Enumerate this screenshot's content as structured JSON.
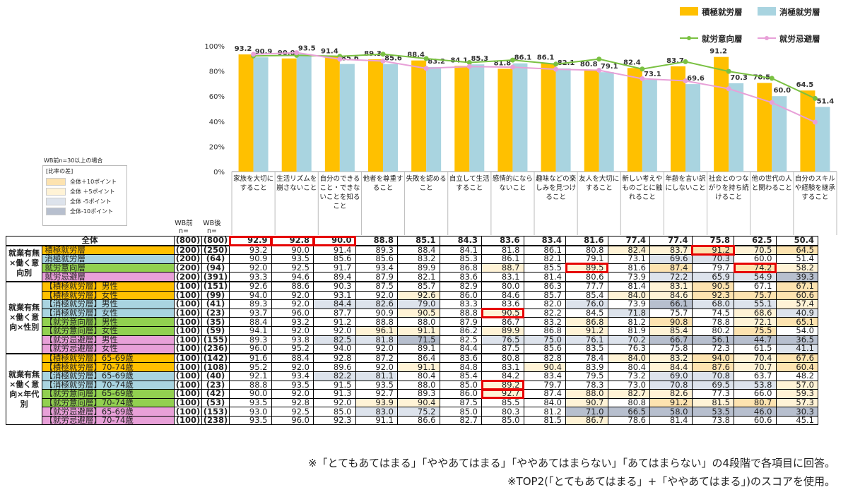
{
  "chart_data": {
    "type": "bar",
    "categories": [
      "家族を大切にすること",
      "生活リズムを崩さないこと",
      "自分のできること・できないことを知ること",
      "他者を尊重すること",
      "失敗を認めること",
      "自立して生活すること",
      "感情的にならないこと",
      "趣味などの楽しみを見つけること",
      "友人を大切にすること",
      "新しい考えやものごとに触れること",
      "年齢を言い訳にしないこと",
      "社会とのつながりを持ち続けること",
      "他の世代の人と関わること",
      "自分のスキルや経験を継承すること"
    ],
    "series": [
      {
        "name": "積極就労層",
        "kind": "bar",
        "color": "#ffc000",
        "values": [
          93.2,
          90.0,
          91.4,
          89.3,
          88.4,
          84.1,
          81.8,
          86.1,
          80.8,
          82.4,
          83.7,
          91.2,
          70.5,
          64.5
        ]
      },
      {
        "name": "消極就労層",
        "kind": "bar",
        "color": "#a9d4e0",
        "values": [
          90.9,
          93.5,
          85.6,
          85.6,
          83.2,
          85.3,
          86.1,
          82.1,
          79.1,
          73.1,
          69.6,
          70.3,
          60.0,
          51.4
        ]
      },
      {
        "name": "就労意向層",
        "kind": "line",
        "color": "#7ac142",
        "values": [
          92.0,
          92.5,
          91.7,
          93.4,
          89.9,
          86.8,
          88.7,
          85.5,
          89.5,
          81.6,
          87.4,
          79.7,
          74.2,
          58.2
        ]
      },
      {
        "name": "就労忌避層",
        "kind": "line",
        "color": "#e8a0d8",
        "values": [
          93.3,
          94.6,
          89.4,
          87.9,
          82.1,
          83.6,
          83.1,
          81.4,
          80.6,
          73.9,
          72.2,
          65.9,
          54.9,
          39.3
        ]
      }
    ],
    "y_ticks": [
      "0%",
      "20%",
      "40%",
      "60%",
      "80%",
      "100%"
    ],
    "ylim": [
      0,
      100
    ]
  },
  "legend_diff": {
    "wb_note": "WB前n=30以上の場合",
    "title": "[比率の差]",
    "items": [
      {
        "label": "全体＋10ポイント",
        "color": "#fde3b0"
      },
      {
        "label": "全体 ＋5ポイント",
        "color": "#fff3d6"
      },
      {
        "label": "全体 -5ポイント",
        "color": "#dde3ec"
      },
      {
        "label": "全体-10ポイント",
        "color": "#b7bfce"
      }
    ]
  },
  "table": {
    "n_head_before": "WB前\nn=",
    "n_head_after": "WB後\nn=",
    "groups": [
      {
        "label": "就業有無×働く意向別",
        "rows": [
          1,
          4
        ]
      },
      {
        "label": "就業有無×働く意向×性別",
        "rows": [
          5,
          12
        ]
      },
      {
        "label": "就業有無×働く意向×年代別",
        "rows": [
          13,
          20
        ]
      }
    ],
    "rows": [
      {
        "label": "全体",
        "color": "#ffffff",
        "nb": "(800)",
        "na": "(800)",
        "vals": [
          92.9,
          92.8,
          90.0,
          88.8,
          85.1,
          84.3,
          83.6,
          83.4,
          81.6,
          77.4,
          77.4,
          75.8,
          62.5,
          50.4
        ],
        "shade": [
          "",
          "",
          "",
          "",
          "",
          "",
          "",
          "",
          "",
          "",
          "",
          "",
          "",
          ""
        ],
        "hl": [
          0,
          1,
          2
        ]
      },
      {
        "label": "積極就労層",
        "color": "#ffc000",
        "nb": "(200)",
        "na": "(250)",
        "vals": [
          93.2,
          90.0,
          91.4,
          89.3,
          88.4,
          84.1,
          81.8,
          86.1,
          80.8,
          82.4,
          83.7,
          91.2,
          70.5,
          64.5
        ],
        "shade": [
          "",
          "",
          "",
          "",
          "",
          "",
          "",
          "",
          "",
          "+5",
          "+5",
          "+10",
          "+5",
          "+10"
        ],
        "hl": [
          11
        ]
      },
      {
        "label": "消極就労層",
        "color": "#a9d4e0",
        "nb": "(200)",
        "na": "(64)",
        "vals": [
          90.9,
          93.5,
          85.6,
          85.6,
          83.2,
          85.3,
          86.1,
          82.1,
          79.1,
          73.1,
          69.6,
          70.3,
          60.0,
          51.4
        ],
        "shade": [
          "",
          "",
          "",
          "",
          "",
          "",
          "",
          "",
          "",
          "",
          "-5",
          "-5",
          "",
          ""
        ],
        "hl": []
      },
      {
        "label": "就労意向層",
        "color": "#92d050",
        "nb": "(200)",
        "na": "(94)",
        "vals": [
          92.0,
          92.5,
          91.7,
          93.4,
          89.9,
          86.8,
          88.7,
          85.5,
          89.5,
          81.6,
          87.4,
          79.7,
          74.2,
          58.2
        ],
        "shade": [
          "",
          "",
          "",
          "",
          "",
          "",
          "+5",
          "",
          "+5",
          "",
          "+10",
          "",
          "+10",
          "+5"
        ],
        "hl": [
          8,
          12
        ]
      },
      {
        "label": "就労忌避層",
        "color": "#e8a0d8",
        "nb": "(200)",
        "na": "(391)",
        "vals": [
          93.3,
          94.6,
          89.4,
          87.9,
          82.1,
          83.6,
          83.1,
          81.4,
          80.6,
          73.9,
          72.2,
          65.9,
          54.9,
          39.3
        ],
        "shade": [
          "",
          "",
          "",
          "",
          "",
          "",
          "",
          "",
          "",
          "",
          "-5",
          "-5",
          "-5",
          "-10"
        ],
        "hl": []
      },
      {
        "label": "【積極就労層】男性",
        "color": "#ffc000",
        "nb": "(100)",
        "na": "(151)",
        "vals": [
          92.6,
          88.6,
          90.3,
          87.5,
          85.7,
          82.9,
          80.0,
          86.3,
          77.7,
          81.4,
          83.1,
          90.5,
          67.1,
          67.1
        ],
        "shade": [
          "",
          "",
          "",
          "",
          "",
          "",
          "",
          "",
          "",
          "",
          "+5",
          "+10",
          "",
          "+10"
        ],
        "hl": []
      },
      {
        "label": "【積極就労層】女性",
        "color": "#ffc000",
        "nb": "(100)",
        "na": "(99)",
        "vals": [
          94.0,
          92.0,
          93.1,
          92.0,
          92.6,
          86.0,
          84.6,
          85.7,
          85.4,
          84.0,
          84.6,
          92.3,
          75.7,
          60.6
        ],
        "shade": [
          "",
          "",
          "",
          "",
          "+5",
          "",
          "",
          "",
          "",
          "+5",
          "+5",
          "+10",
          "+10",
          "+10"
        ],
        "hl": []
      },
      {
        "label": "【消極就労層】男性",
        "color": "#a9d4e0",
        "nb": "(100)",
        "na": "(41)",
        "vals": [
          89.3,
          92.0,
          84.4,
          82.6,
          79.0,
          83.3,
          83.6,
          82.0,
          76.0,
          73.9,
          66.1,
          68.0,
          55.1,
          57.4
        ],
        "shade": [
          "",
          "",
          "-5",
          "-5",
          "-5",
          "",
          "",
          "",
          "-5",
          "",
          "-10",
          "-5",
          "-5",
          "+5"
        ],
        "hl": []
      },
      {
        "label": "【消極就労層】女性",
        "color": "#a9d4e0",
        "nb": "(100)",
        "na": "(23)",
        "vals": [
          93.7,
          96.0,
          87.7,
          90.9,
          90.5,
          88.8,
          90.5,
          82.2,
          84.5,
          71.8,
          75.7,
          74.5,
          68.6,
          40.9
        ],
        "shade": [
          "",
          "",
          "",
          "",
          "+5",
          "",
          "+5",
          "",
          "",
          "-5",
          "",
          "",
          "+5",
          "-5"
        ],
        "hl": [
          6
        ]
      },
      {
        "label": "【就労意向層】男性",
        "color": "#92d050",
        "nb": "(100)",
        "na": "(35)",
        "vals": [
          88.4,
          93.2,
          91.2,
          88.8,
          88.0,
          87.9,
          86.7,
          83.2,
          86.8,
          81.2,
          90.8,
          78.8,
          72.1,
          65.1
        ],
        "shade": [
          "",
          "",
          "",
          "",
          "",
          "",
          "",
          "",
          "+5",
          "",
          "+10",
          "",
          "+5",
          "+10"
        ],
        "hl": []
      },
      {
        "label": "【就労意向層】女性",
        "color": "#92d050",
        "nb": "(100)",
        "na": "(59)",
        "vals": [
          94.1,
          92.0,
          92.0,
          96.1,
          91.1,
          86.2,
          89.9,
          86.8,
          91.2,
          81.9,
          85.4,
          80.2,
          75.5,
          54.0
        ],
        "shade": [
          "",
          "",
          "",
          "+5",
          "+5",
          "",
          "+5",
          "",
          "+5",
          "",
          "+5",
          "",
          "+10",
          ""
        ],
        "hl": []
      },
      {
        "label": "【就労忌避層】男性",
        "color": "#e8a0d8",
        "nb": "(100)",
        "na": "(155)",
        "vals": [
          89.3,
          93.8,
          82.5,
          81.8,
          71.5,
          82.5,
          76.5,
          75.0,
          76.1,
          70.2,
          66.7,
          56.1,
          44.7,
          36.5
        ],
        "shade": [
          "",
          "",
          "-5",
          "-5",
          "-10",
          "",
          "-5",
          "-5",
          "-5",
          "-5",
          "-10",
          "-10",
          "-10",
          "-10"
        ],
        "hl": []
      },
      {
        "label": "【就労忌避層】女性",
        "color": "#e8a0d8",
        "nb": "(100)",
        "na": "(236)",
        "vals": [
          96.0,
          95.2,
          94.0,
          92.0,
          89.1,
          84.4,
          87.5,
          85.6,
          83.5,
          76.3,
          75.8,
          72.3,
          61.5,
          41.1
        ],
        "shade": [
          "",
          "",
          "",
          "",
          "",
          "",
          "",
          "",
          "",
          "",
          "",
          "",
          "",
          "-5"
        ],
        "hl": []
      },
      {
        "label": "【積極就労層】65-69歳",
        "color": "#ffc000",
        "nb": "(100)",
        "na": "(142)",
        "vals": [
          91.6,
          88.4,
          92.8,
          87.2,
          86.4,
          83.6,
          80.8,
          82.8,
          78.4,
          84.0,
          83.2,
          94.0,
          70.4,
          67.6
        ],
        "shade": [
          "",
          "",
          "",
          "",
          "",
          "",
          "",
          "",
          "",
          "+5",
          "+5",
          "+10",
          "+5",
          "+10"
        ],
        "hl": []
      },
      {
        "label": "【積極就労層】70-74歳",
        "color": "#ffc000",
        "nb": "(100)",
        "na": "(108)",
        "vals": [
          95.2,
          92.0,
          89.6,
          92.0,
          91.1,
          84.8,
          83.1,
          90.4,
          83.9,
          80.4,
          84.4,
          87.6,
          70.7,
          60.4
        ],
        "shade": [
          "",
          "",
          "",
          "",
          "+5",
          "",
          "",
          "+5",
          "",
          "",
          "+5",
          "+10",
          "+5",
          "+10"
        ],
        "hl": []
      },
      {
        "label": "【消極就労層】65-69歳",
        "color": "#a9d4e0",
        "nb": "(100)",
        "na": "(40)",
        "vals": [
          92.1,
          93.4,
          82.2,
          81.1,
          80.4,
          85.4,
          84.2,
          83.4,
          79.5,
          73.2,
          69.0,
          70.8,
          63.7,
          48.2
        ],
        "shade": [
          "",
          "",
          "-5",
          "-5",
          "",
          "",
          "",
          "",
          "",
          "",
          "-5",
          "-5",
          "",
          ""
        ],
        "hl": []
      },
      {
        "label": "【消極就労層】70-74歳",
        "color": "#a9d4e0",
        "nb": "(100)",
        "na": "(23)",
        "vals": [
          88.8,
          93.5,
          91.5,
          93.5,
          88.0,
          85.0,
          89.2,
          79.7,
          78.3,
          73.0,
          70.8,
          69.5,
          53.8,
          57.0
        ],
        "shade": [
          "",
          "",
          "",
          "",
          "",
          "",
          "+5",
          "",
          "",
          "",
          "-5",
          "-5",
          "-5",
          "+5"
        ],
        "hl": [
          6
        ]
      },
      {
        "label": "【就労意向層】65-69歳",
        "color": "#92d050",
        "nb": "(100)",
        "na": "(42)",
        "vals": [
          90.0,
          92.0,
          91.3,
          92.7,
          89.3,
          86.0,
          92.7,
          87.4,
          88.0,
          82.7,
          82.6,
          77.3,
          66.0,
          59.3
        ],
        "shade": [
          "",
          "",
          "",
          "",
          "",
          "",
          "+5",
          "",
          "+5",
          "+5",
          "+5",
          "",
          "",
          "+5"
        ],
        "hl": [
          6
        ]
      },
      {
        "label": "【就労意向層】70-74歳",
        "color": "#92d050",
        "nb": "(100)",
        "na": "(53)",
        "vals": [
          93.5,
          92.8,
          92.0,
          93.9,
          90.4,
          87.5,
          85.5,
          84.0,
          90.7,
          80.8,
          91.2,
          81.5,
          80.7,
          57.3
        ],
        "shade": [
          "",
          "",
          "",
          "+5",
          "+5",
          "",
          "",
          "",
          "+5",
          "",
          "+10",
          "+5",
          "+10",
          "+5"
        ],
        "hl": []
      },
      {
        "label": "【就労忌避層】65-69歳",
        "color": "#e8a0d8",
        "nb": "(100)",
        "na": "(153)",
        "vals": [
          93.0,
          92.5,
          85.0,
          83.0,
          75.2,
          85.0,
          80.3,
          81.2,
          71.0,
          66.5,
          58.0,
          53.5,
          46.0,
          30.3
        ],
        "shade": [
          "",
          "",
          "",
          "-5",
          "-5",
          "",
          "",
          "",
          "-10",
          "-10",
          "-10",
          "-10",
          "-10",
          "-10"
        ],
        "hl": []
      },
      {
        "label": "【就労忌避層】70-74歳",
        "color": "#e8a0d8",
        "nb": "(100)",
        "na": "(238)",
        "vals": [
          93.5,
          96.0,
          92.3,
          91.1,
          86.6,
          82.7,
          85.0,
          81.5,
          86.7,
          78.6,
          81.4,
          73.8,
          60.6,
          45.1
        ],
        "shade": [
          "",
          "",
          "",
          "",
          "",
          "",
          "",
          "",
          "+5",
          "",
          "",
          "",
          "",
          ""
        ],
        "hl": []
      }
    ]
  },
  "notes": {
    "line1": "※「とてもあてはまる」「ややあてはまる」「ややあてはまらない」「あてはまらない」の4段階で各項目に回答。",
    "line2": "※TOP2(「とてもあてはまる」+「ややあてはまる」)のスコアを使用。"
  }
}
